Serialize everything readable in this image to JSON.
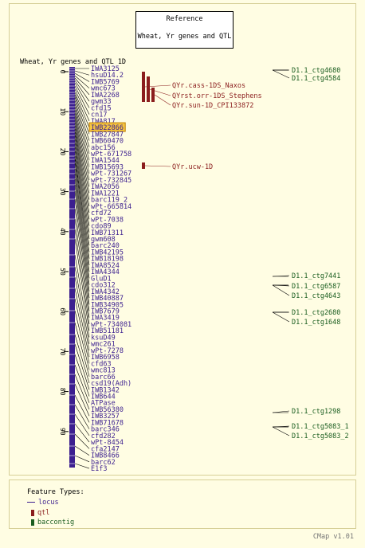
{
  "reference": {
    "label": "Reference",
    "title": "Wheat, Yr genes and QTL"
  },
  "map": {
    "title": "Wheat, Yr genes and QTL 1D",
    "ticks": [
      "0",
      "10",
      "20",
      "30",
      "40",
      "50",
      "60",
      "70",
      "80",
      "90"
    ],
    "markers": [
      "IWA3125",
      "hsuD14.2",
      "IWB5769",
      "wmc673",
      "IWA2268",
      "gwm33",
      "cfd15",
      "cn17",
      "IWA817",
      "IWB22866",
      "IWB27847",
      "IWB60470",
      "abc156",
      "wPt-671758",
      "IWA1544",
      "IWB15693",
      "wPt-731267",
      "wPt-732845",
      "IWA2056",
      "IWA1221",
      "barc119_2",
      "wPt-665814",
      "cfd72",
      "wPt-7038",
      "cdo89",
      "IWB71311",
      "gwm608",
      "barc240",
      "IWB42195",
      "IWB18198",
      "IWA8524",
      "IWA4344",
      "GluD1",
      "cdo312",
      "IWA4342",
      "IWB40887",
      "IWB34905",
      "IWB7679",
      "IWA3419",
      "wPt-734081",
      "IWB51181",
      "ksuD49",
      "wmc261",
      "wPt-7278",
      "IWB6958",
      "cfd63",
      "wmc813",
      "barc66",
      "csd19(Adh)",
      "IWB1342",
      "IWB644",
      "ATPase",
      "IWB56380",
      "IWB3257",
      "IWB71678",
      "barc346",
      "cfd282",
      "wPt-8454",
      "cfa2147",
      "IWB8466",
      "barc62",
      "E1f3"
    ],
    "highlighted": "IWB22866"
  },
  "qtls": [
    {
      "label": "QYr.cass-1DS_Naxos",
      "color": "#8b1d1d"
    },
    {
      "label": "QYrst.orr-1DS_Stephens",
      "color": "#8b1d1d"
    },
    {
      "label": "QYr.sun-1D_CPI133872",
      "color": "#8b1d1d"
    },
    {
      "label": "QYr.ucw-1D",
      "color": "#8b1d1d"
    }
  ],
  "contigs": [
    "D1.1_ctg4680",
    "D1.1_ctg4584",
    "D1.1_ctg7441",
    "D1.1_ctg6587",
    "D1.1_ctg4643",
    "D1.1_ctg2680",
    "D1.1_ctg1648",
    "D1.1_ctg1298",
    "D1.1_ctg5083_1",
    "D1.1_ctg5083_2"
  ],
  "legend": {
    "title": "Feature Types:",
    "items": [
      {
        "label": "locus",
        "icon": "line",
        "color": "#3c1f8f"
      },
      {
        "label": "qtl",
        "icon": "bar",
        "color": "#8b1d1d"
      },
      {
        "label": "baccontig",
        "icon": "bar",
        "color": "#1b5e20"
      }
    ]
  },
  "footer": "CMap v1.01",
  "colors": {
    "locus": "#3c1f8f",
    "qtl": "#8b1d1d",
    "contig": "#1b5e20",
    "highlight": "#f5c542"
  }
}
